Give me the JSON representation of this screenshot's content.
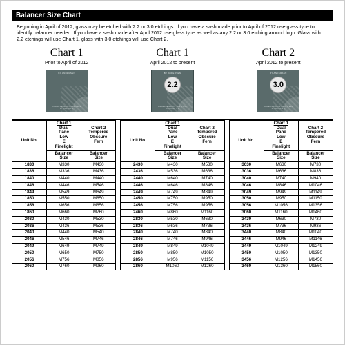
{
  "title": "Balancer Size Chart",
  "intro": "Beginning in April of 2012, glass may be etched with 2.2 or 3.0 etchings.  If you have a sash made prior to April of 2012 use glass type to identify balancer needed.  If you have a sash made after April 2012 use glass type as well as any 2.2 or 3.0 etching around logo. Glass with 2.2 etchings will use Chart 1, glass with 3.0 etchings will use Chart 2.",
  "charts": [
    {
      "title": "Chart 1",
      "sub": "Prior to April of 2012",
      "badge": ""
    },
    {
      "title": "Chart 1",
      "sub": "April 2012 to present",
      "badge": "2.2"
    },
    {
      "title": "Chart 2",
      "sub": "April 2012 to present",
      "badge": "3.0"
    }
  ],
  "colheads": {
    "c1": {
      "label": "Chart 1",
      "desc": "Dual Pane Low E Finelight"
    },
    "c2": {
      "label": "Chart 2",
      "desc": "Tempered Obscure Fern"
    },
    "sub": "Balancer Size",
    "unit": "Unit No."
  },
  "groups": [
    {
      "rows": [
        {
          "u": "1830",
          "a": "M330",
          "b": "M430"
        },
        {
          "u": "1836",
          "a": "M336",
          "b": "M436"
        },
        {
          "u": "1840",
          "a": "M440",
          "b": "M440"
        },
        {
          "u": "1846",
          "a": "M446",
          "b": "M546"
        },
        {
          "u": "1849",
          "a": "M549",
          "b": "M649"
        },
        {
          "u": "1850",
          "a": "M550",
          "b": "M650"
        },
        {
          "u": "1856",
          "a": "M656",
          "b": "M656"
        },
        {
          "u": "1860",
          "a": "M660",
          "b": "M760"
        },
        {
          "u": "2030",
          "a": "M430",
          "b": "M530"
        },
        {
          "u": "2036",
          "a": "M436",
          "b": "M536"
        },
        {
          "u": "2040",
          "a": "M440",
          "b": "M540"
        },
        {
          "u": "2046",
          "a": "M546",
          "b": "M746"
        },
        {
          "u": "2049",
          "a": "M649",
          "b": "M749"
        },
        {
          "u": "2050",
          "a": "M650",
          "b": "M750"
        },
        {
          "u": "2056",
          "a": "M756",
          "b": "M856"
        },
        {
          "u": "2060",
          "a": "M760",
          "b": "M960"
        }
      ]
    },
    {
      "rows": [
        {
          "u": "2430",
          "a": "M430",
          "b": "M530"
        },
        {
          "u": "2436",
          "a": "M536",
          "b": "M636"
        },
        {
          "u": "2440",
          "a": "M640",
          "b": "M740"
        },
        {
          "u": "2446",
          "a": "M646",
          "b": "M846"
        },
        {
          "u": "2449",
          "a": "M749",
          "b": "M849"
        },
        {
          "u": "2450",
          "a": "M750",
          "b": "M950"
        },
        {
          "u": "2456",
          "a": "M756",
          "b": "M956"
        },
        {
          "u": "2460",
          "a": "M860",
          "b": "M1160"
        },
        {
          "u": "2830",
          "a": "M530",
          "b": "M630"
        },
        {
          "u": "2836",
          "a": "M636",
          "b": "M736"
        },
        {
          "u": "2840",
          "a": "M740",
          "b": "M840"
        },
        {
          "u": "2846",
          "a": "M746",
          "b": "M946"
        },
        {
          "u": "2849",
          "a": "M849",
          "b": "M1049"
        },
        {
          "u": "2850",
          "a": "M850",
          "b": "M1050"
        },
        {
          "u": "2856",
          "a": "M956",
          "b": "M1156"
        },
        {
          "u": "2860",
          "a": "M1060",
          "b": "M1260"
        }
      ]
    },
    {
      "rows": [
        {
          "u": "3030",
          "a": "M630",
          "b": "M730"
        },
        {
          "u": "3036",
          "a": "M636",
          "b": "M836"
        },
        {
          "u": "3040",
          "a": "M740",
          "b": "M940"
        },
        {
          "u": "3046",
          "a": "M846",
          "b": "M1046"
        },
        {
          "u": "3049",
          "a": "M949",
          "b": "M1149"
        },
        {
          "u": "3050",
          "a": "M950",
          "b": "M1150"
        },
        {
          "u": "3056",
          "a": "M1056",
          "b": "M1356"
        },
        {
          "u": "3060",
          "a": "M1160",
          "b": "M1460"
        },
        {
          "u": "3430",
          "a": "M630",
          "b": "M730"
        },
        {
          "u": "3436",
          "a": "M736",
          "b": "M936"
        },
        {
          "u": "3440",
          "a": "M840",
          "b": "M1040"
        },
        {
          "u": "3446",
          "a": "M946",
          "b": "M1146"
        },
        {
          "u": "3449",
          "a": "M1049",
          "b": "M1249"
        },
        {
          "u": "3450",
          "a": "M1050",
          "b": "M1350"
        },
        {
          "u": "3456",
          "a": "M1256",
          "b": "M1456"
        },
        {
          "u": "3460",
          "a": "M1360",
          "b": "M1560"
        }
      ]
    }
  ],
  "style": {
    "page_bg": "#ffffff",
    "title_bg": "#000000",
    "title_fg": "#ffffff",
    "border": "#000000",
    "glass_bg": "#5a6b6b",
    "glass_border": "#3a4a4a",
    "badge_bg": "#e9e9e9",
    "badge_border": "#b0b0b0",
    "font_body": 7.2,
    "font_table": 6.2,
    "chart_title_font": 16
  }
}
